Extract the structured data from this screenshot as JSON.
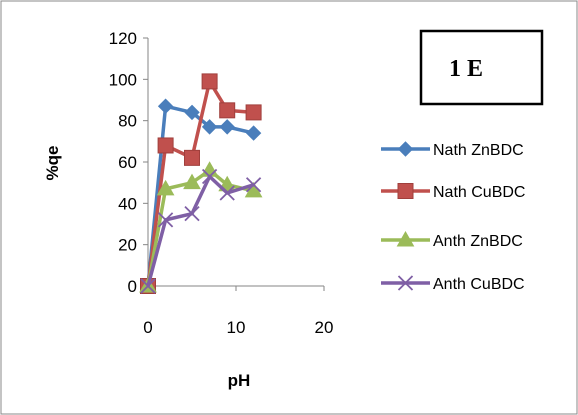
{
  "chart_data": {
    "type": "line",
    "title": "",
    "xlabel": "pH",
    "ylabel": "%qe",
    "xlim": [
      0,
      20
    ],
    "ylim": [
      0,
      120
    ],
    "x_ticks": [
      0,
      10,
      20
    ],
    "y_ticks": [
      0,
      20,
      40,
      60,
      80,
      100,
      120
    ],
    "grid": false,
    "legend_position": "right",
    "annotation": "1 E",
    "series": [
      {
        "name": "Nath ZnBDC",
        "marker": "diamond",
        "color": "#4a7ebb",
        "x": [
          0,
          2,
          5,
          7,
          9,
          12
        ],
        "y": [
          0,
          87,
          84,
          77,
          77,
          74
        ]
      },
      {
        "name": "Nath CuBDC",
        "marker": "square",
        "color": "#c0504d",
        "x": [
          0,
          2,
          5,
          7,
          9,
          12
        ],
        "y": [
          0,
          68,
          62,
          99,
          85,
          84
        ]
      },
      {
        "name": "Anth ZnBDC",
        "marker": "triangle",
        "color": "#9bbb59",
        "x": [
          0,
          2,
          5,
          7,
          9,
          12
        ],
        "y": [
          0,
          47,
          50,
          56,
          49,
          46
        ]
      },
      {
        "name": "Anth CuBDC",
        "marker": "x",
        "color": "#7f5fa5",
        "x": [
          0,
          2,
          5,
          7,
          9,
          12
        ],
        "y": [
          0,
          32,
          35,
          53,
          45,
          49
        ]
      }
    ]
  }
}
